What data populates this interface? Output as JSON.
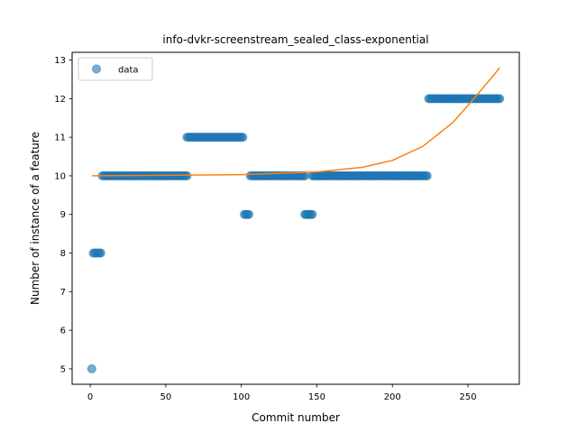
{
  "chart_data": {
    "type": "scatter",
    "title": "info-dvkr-screenstream_sealed_class-exponential",
    "xlabel": "Commit number",
    "ylabel": "Number of instance of a feature",
    "xlim": [
      -12,
      284
    ],
    "ylim": [
      4.6,
      13.2
    ],
    "xticks": [
      0,
      50,
      100,
      150,
      200,
      250
    ],
    "yticks": [
      5,
      6,
      7,
      8,
      9,
      10,
      11,
      12,
      13
    ],
    "grid": false,
    "legend": {
      "placement": "top-left",
      "entries": [
        "data"
      ]
    },
    "colors": {
      "data": "#1f77b4",
      "fit": "#ff7f0e"
    },
    "series": [
      {
        "name": "data",
        "kind": "scatter",
        "segments": [
          {
            "x_start": 1,
            "x_end": 1,
            "y": 5
          },
          {
            "x_start": 2,
            "x_end": 7,
            "y": 8
          },
          {
            "x_start": 8,
            "x_end": 64,
            "y": 10
          },
          {
            "x_start": 64,
            "x_end": 101,
            "y": 11
          },
          {
            "x_start": 102,
            "x_end": 105,
            "y": 9
          },
          {
            "x_start": 106,
            "x_end": 142,
            "y": 10
          },
          {
            "x_start": 142,
            "x_end": 147,
            "y": 9
          },
          {
            "x_start": 147,
            "x_end": 223,
            "y": 10
          },
          {
            "x_start": 224,
            "x_end": 271,
            "y": 12
          }
        ]
      },
      {
        "kind": "line",
        "model": "exponential",
        "x_range": [
          1,
          271
        ],
        "points": [
          [
            1,
            10.0
          ],
          [
            100,
            10.03
          ],
          [
            150,
            10.1
          ],
          [
            180,
            10.22
          ],
          [
            200,
            10.4
          ],
          [
            220,
            10.76
          ],
          [
            240,
            11.38
          ],
          [
            255,
            12.05
          ],
          [
            265,
            12.51
          ],
          [
            271,
            12.8
          ]
        ]
      }
    ]
  }
}
